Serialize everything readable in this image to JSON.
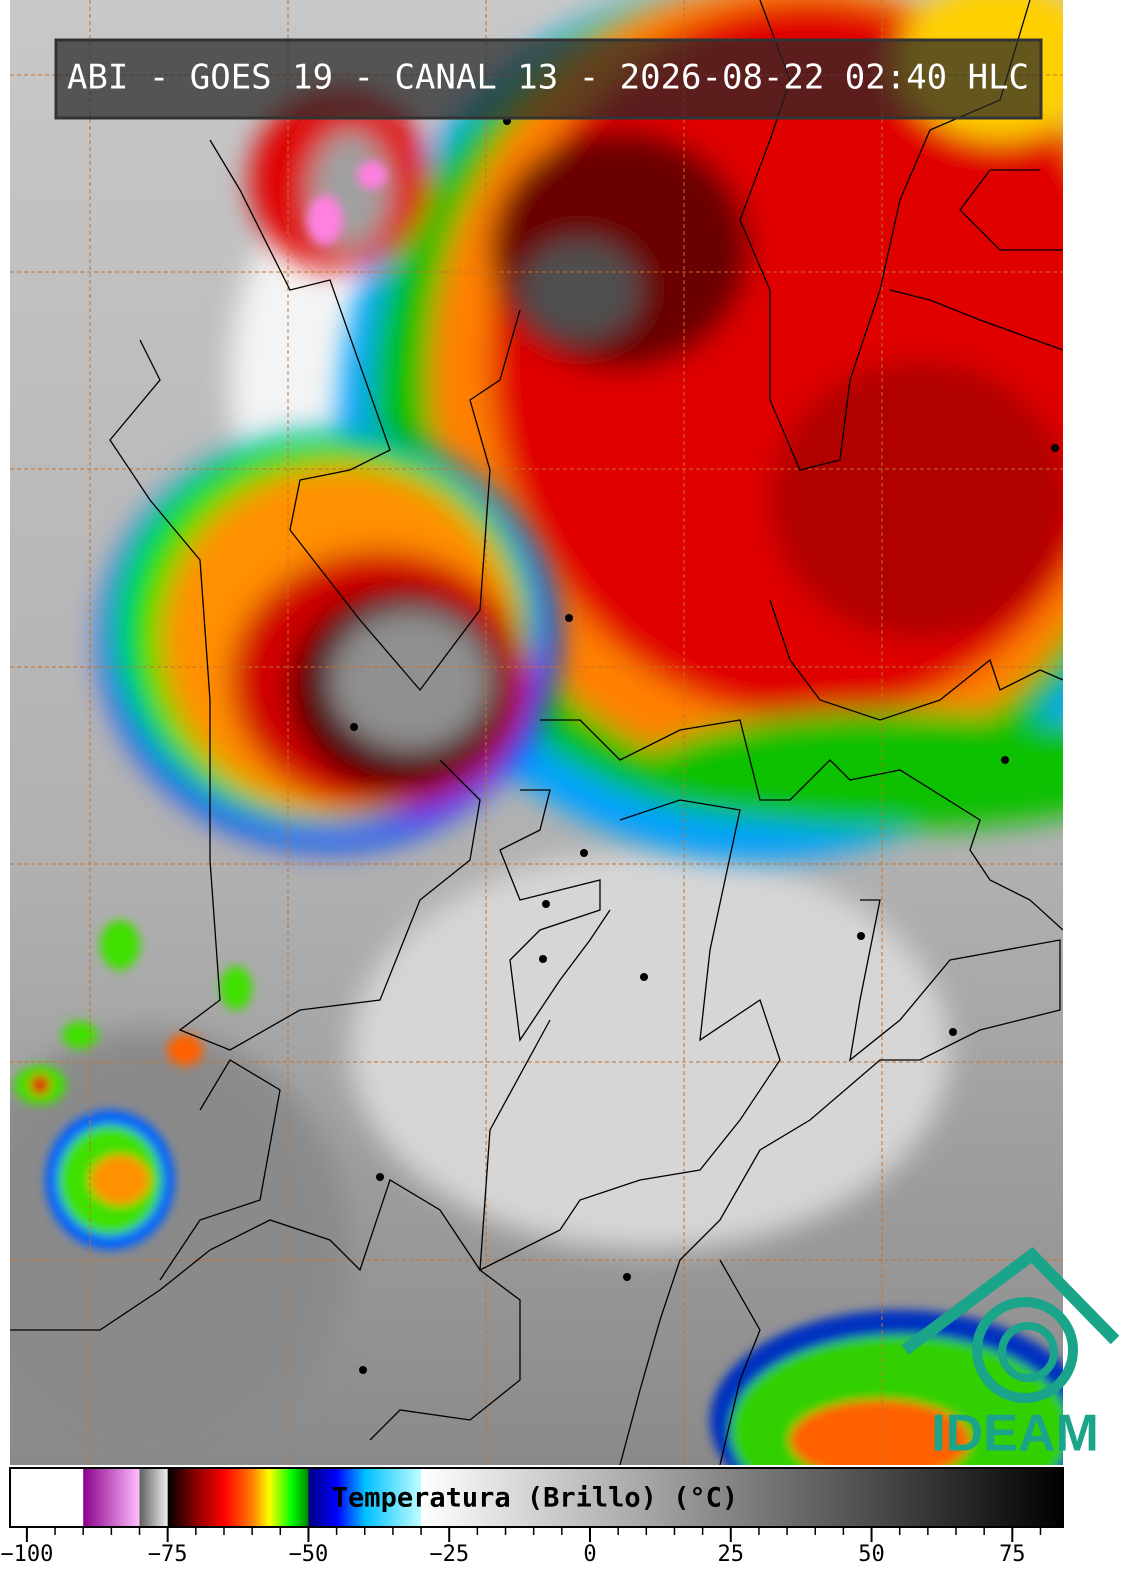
{
  "header": {
    "title": "ABI - GOES 19 - CANAL 13 - 2026-08-22 02:40 HLC"
  },
  "colorbar": {
    "label": "Temperatura (Brillo) (°C)",
    "range": [
      -103,
      84
    ],
    "ticks": [
      {
        "value": -100,
        "label": "−100"
      },
      {
        "value": -75,
        "label": "−75"
      },
      {
        "value": -50,
        "label": "−50"
      },
      {
        "value": -25,
        "label": "−25"
      },
      0,
      25,
      50,
      75
    ],
    "minor_tick_step": 5,
    "colormap": [
      {
        "value": -103,
        "color": "#ffffff"
      },
      {
        "value": -90,
        "color": "#ffffff"
      },
      {
        "value": -90,
        "color": "#8b008b"
      },
      {
        "value": -80,
        "color": "#ffc0ff"
      },
      {
        "value": -80,
        "color": "#606060"
      },
      {
        "value": -75,
        "color": "#f0f0f0"
      },
      {
        "value": -75,
        "color": "#000000"
      },
      {
        "value": -70,
        "color": "#8b0000"
      },
      {
        "value": -65,
        "color": "#ff0000"
      },
      {
        "value": -60,
        "color": "#ff8000"
      },
      {
        "value": -57,
        "color": "#ffff00"
      },
      {
        "value": -53,
        "color": "#00ff00"
      },
      {
        "value": -50,
        "color": "#008000"
      },
      {
        "value": -50,
        "color": "#000080"
      },
      {
        "value": -45,
        "color": "#0000ff"
      },
      {
        "value": -40,
        "color": "#00c0ff"
      },
      {
        "value": -30,
        "color": "#c0ffff"
      },
      {
        "value": -30,
        "color": "#ffffff"
      },
      {
        "value": 84,
        "color": "#000000"
      }
    ]
  },
  "logo": {
    "text": "IDEAM"
  }
}
